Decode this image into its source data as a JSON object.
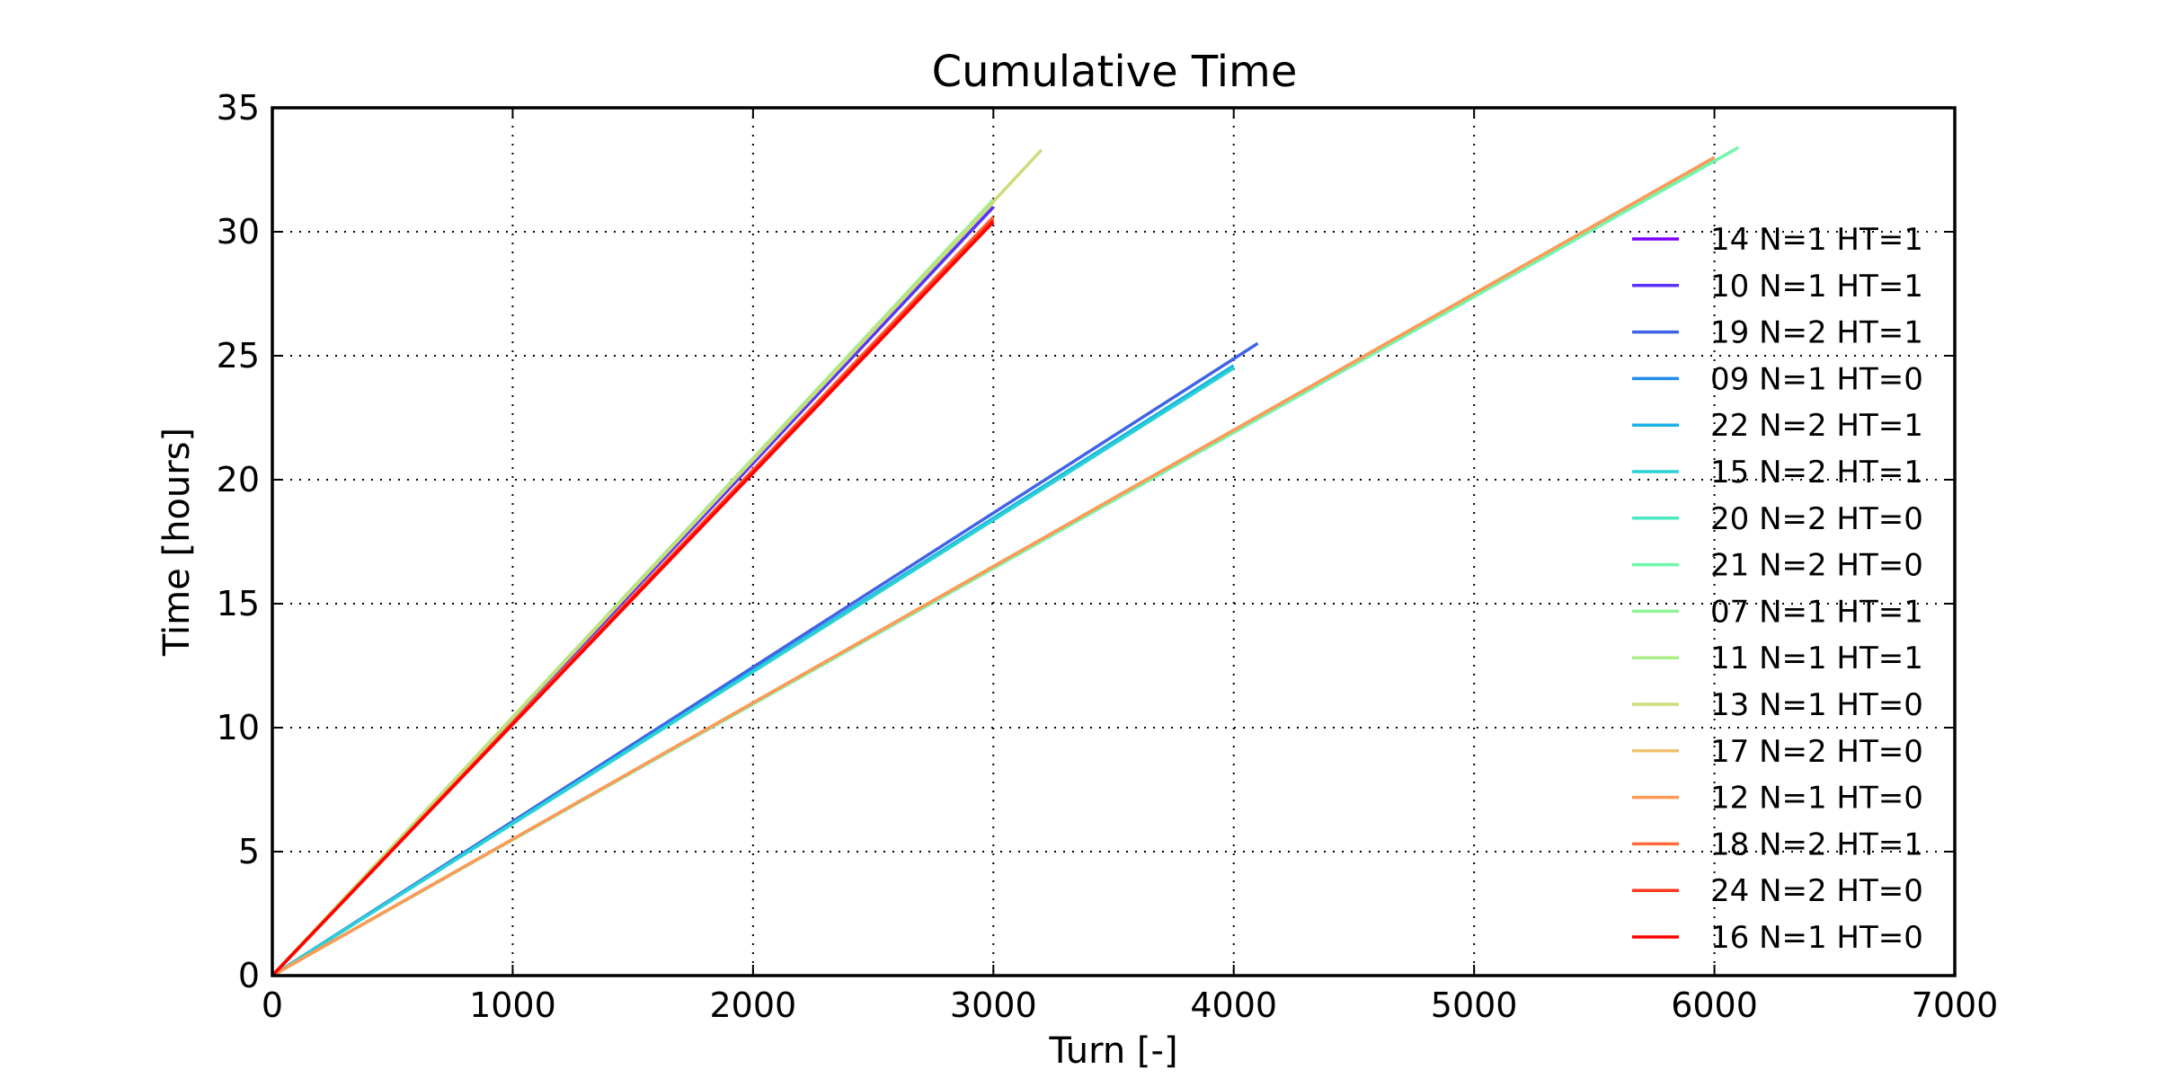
{
  "chart_data": {
    "type": "line",
    "title": "Cumulative Time",
    "xlabel": "Turn [-]",
    "ylabel": "Time [hours]",
    "xlim": [
      0,
      7000
    ],
    "ylim": [
      0,
      35
    ],
    "xticks": [
      0,
      1000,
      2000,
      3000,
      4000,
      5000,
      6000,
      7000
    ],
    "yticks": [
      0,
      5,
      10,
      15,
      20,
      25,
      30,
      35
    ],
    "grid": true,
    "legend_position": "right",
    "series": [
      {
        "name": "14 N=1 HT=1",
        "color": "#7f00ff",
        "x": [
          0,
          3000
        ],
        "y": [
          0,
          31.0
        ]
      },
      {
        "name": "10 N=1 HT=1",
        "color": "#5a32fa",
        "x": [
          0,
          3000
        ],
        "y": [
          0,
          31.0
        ]
      },
      {
        "name": "19 N=2 HT=1",
        "color": "#3f63e6",
        "x": [
          0,
          4100
        ],
        "y": [
          0,
          25.5
        ]
      },
      {
        "name": "09 N=1 HT=0",
        "color": "#1f8bef",
        "x": [
          0,
          6000
        ],
        "y": [
          0,
          33.0
        ]
      },
      {
        "name": "22 N=2 HT=1",
        "color": "#18b2e6",
        "x": [
          0,
          4000
        ],
        "y": [
          0,
          24.6
        ]
      },
      {
        "name": "15 N=2 HT=1",
        "color": "#2ad1d4",
        "x": [
          0,
          4000
        ],
        "y": [
          0,
          24.5
        ]
      },
      {
        "name": "20 N=2 HT=0",
        "color": "#4ae9c3",
        "x": [
          0,
          6000
        ],
        "y": [
          0,
          32.9
        ]
      },
      {
        "name": "21 N=2 HT=0",
        "color": "#6ff7ae",
        "x": [
          0,
          6100
        ],
        "y": [
          0,
          33.4
        ]
      },
      {
        "name": "07 N=1 HT=1",
        "color": "#8ef596",
        "x": [
          0,
          3000
        ],
        "y": [
          0,
          31.3
        ]
      },
      {
        "name": "11 N=1 HT=1",
        "color": "#aaee85",
        "x": [
          0,
          3000
        ],
        "y": [
          0,
          31.2
        ]
      },
      {
        "name": "13 N=1 HT=0",
        "color": "#cadd78",
        "x": [
          0,
          3200
        ],
        "y": [
          0,
          33.3
        ]
      },
      {
        "name": "17 N=2 HT=0",
        "color": "#f0c070",
        "x": [
          0,
          6000
        ],
        "y": [
          0,
          33.0
        ]
      },
      {
        "name": "12 N=1 HT=0",
        "color": "#ff9a55",
        "x": [
          0,
          6000
        ],
        "y": [
          0,
          33.0
        ]
      },
      {
        "name": "18 N=2 HT=1",
        "color": "#ff6a3a",
        "x": [
          0,
          3000
        ],
        "y": [
          0,
          30.6
        ]
      },
      {
        "name": "24 N=2 HT=0",
        "color": "#ff3a1e",
        "x": [
          0,
          3000
        ],
        "y": [
          0,
          30.5
        ]
      },
      {
        "name": "16 N=1 HT=0",
        "color": "#ff0000",
        "x": [
          0,
          3000
        ],
        "y": [
          0,
          30.4
        ]
      }
    ]
  }
}
